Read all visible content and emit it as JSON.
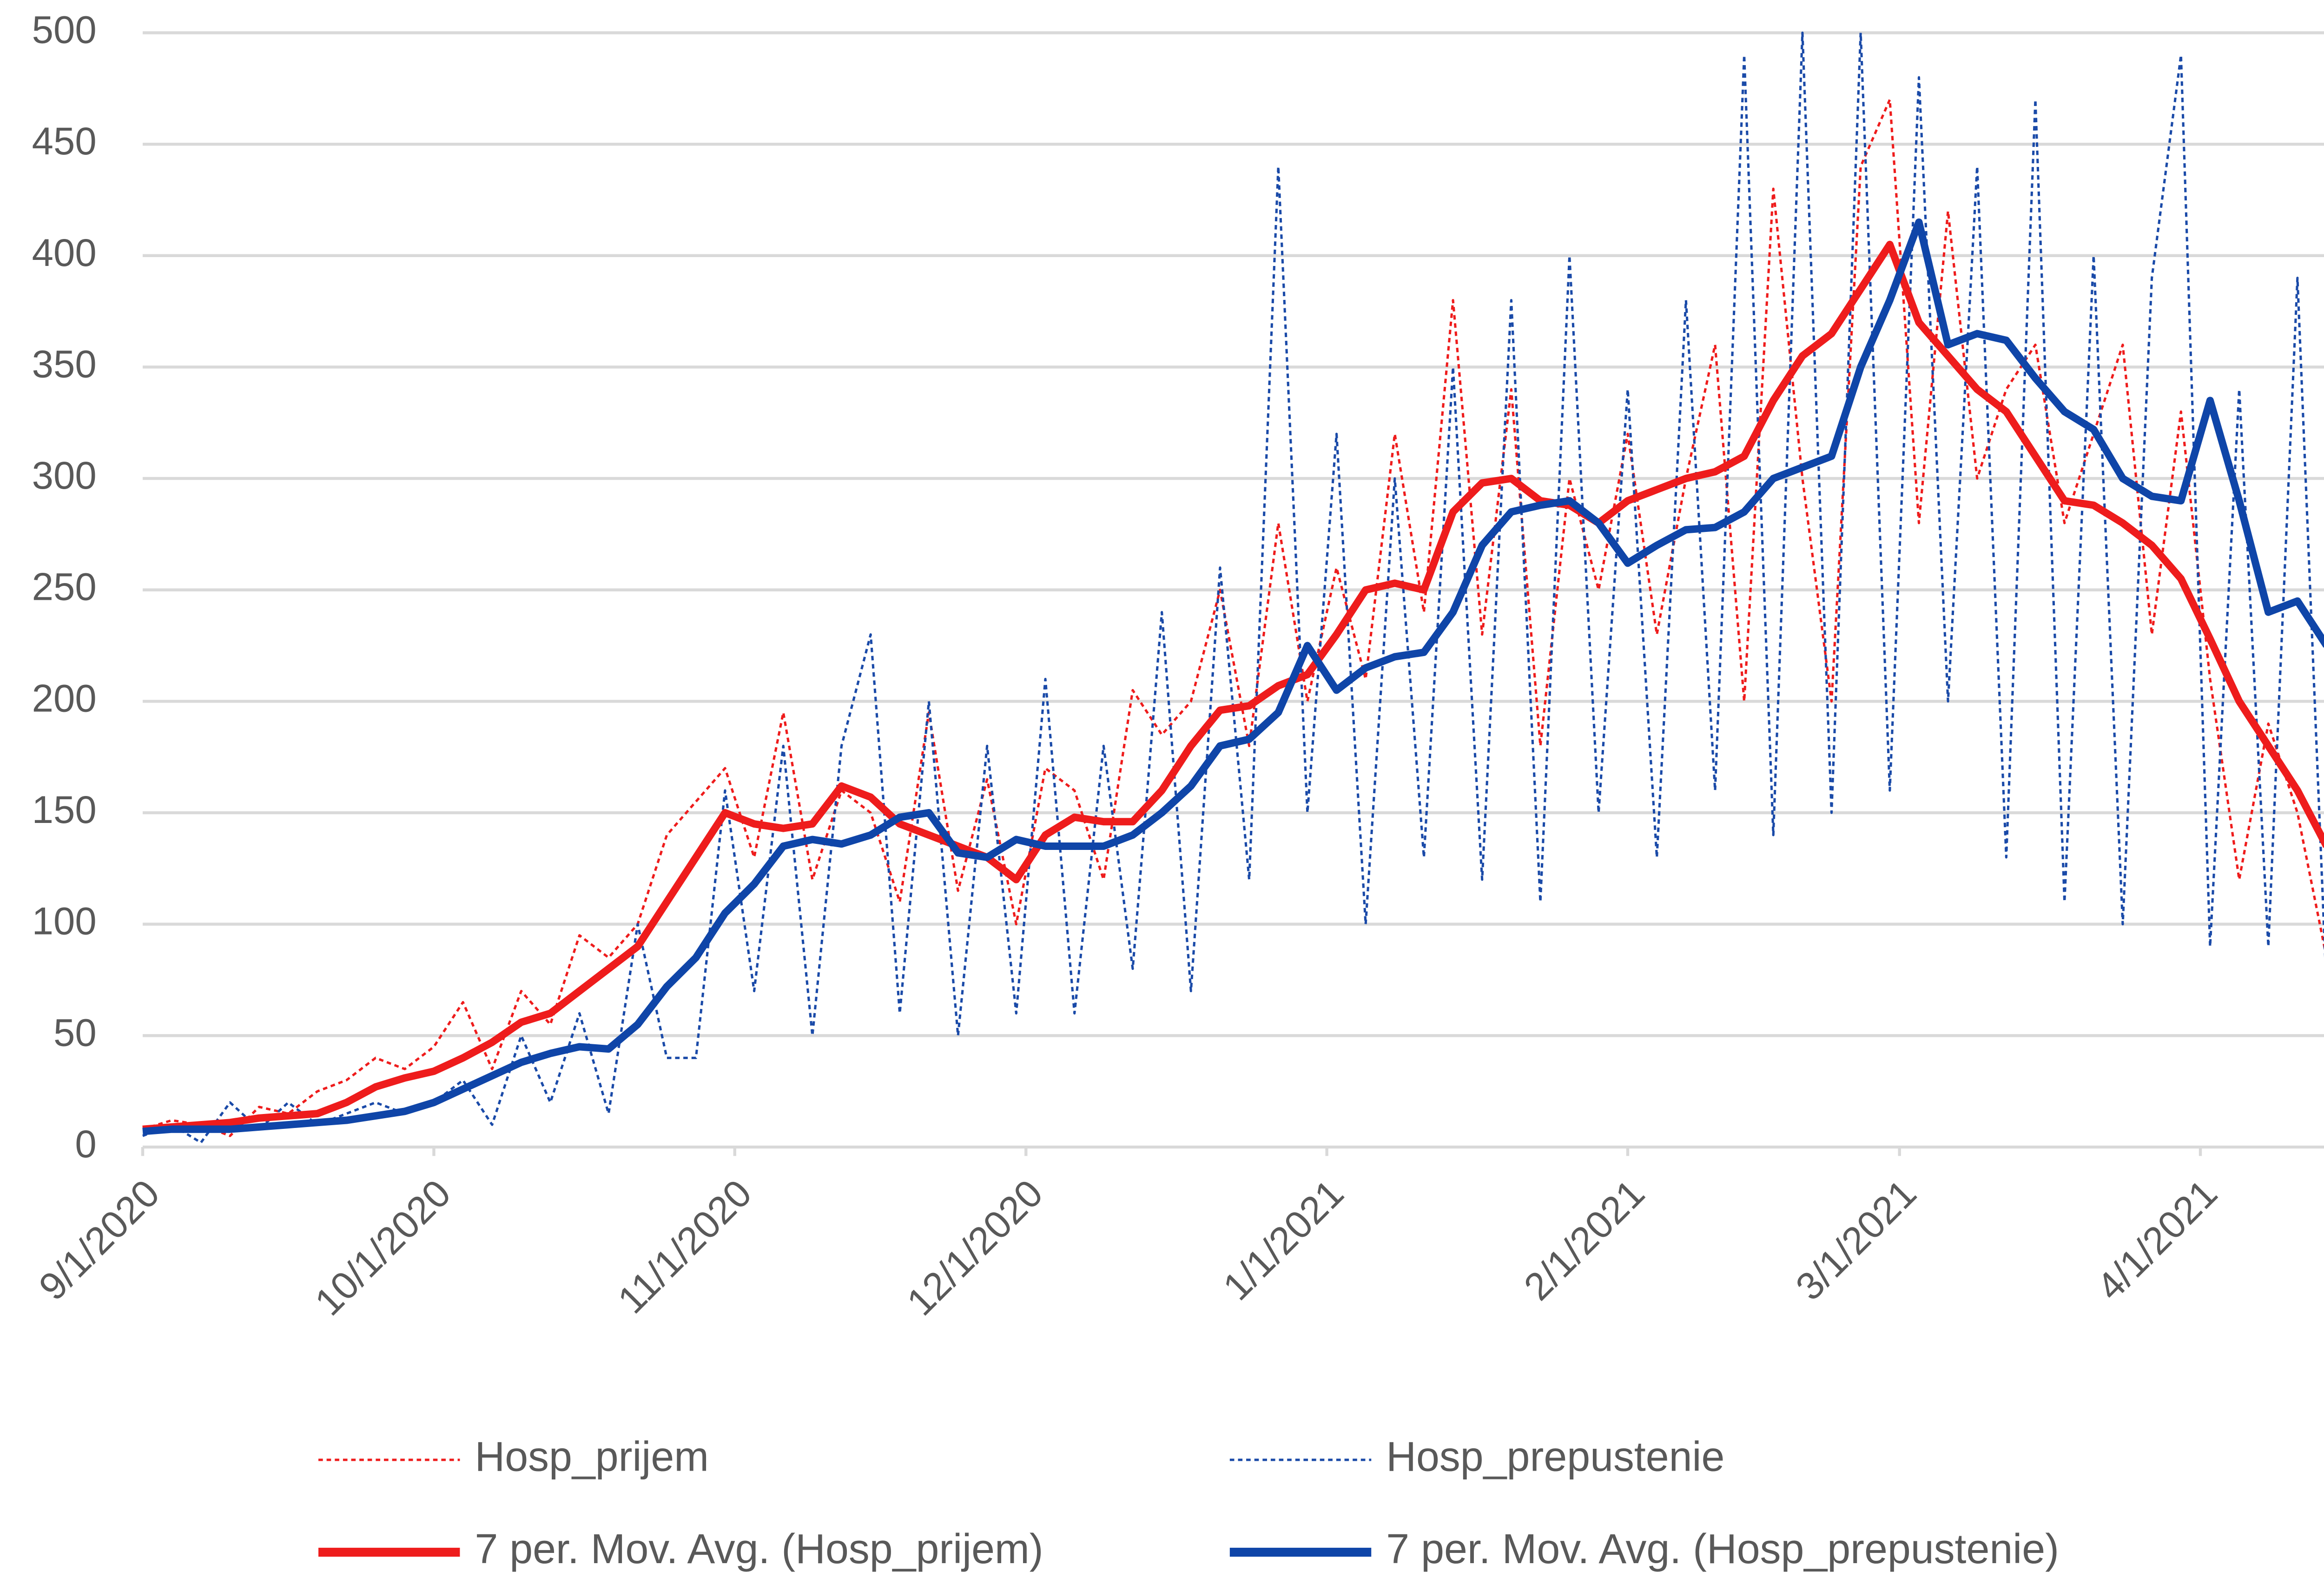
{
  "chart_data": {
    "type": "line",
    "x": [
      "9/1/2020",
      "9/4/2020",
      "9/7/2020",
      "9/10/2020",
      "9/13/2020",
      "9/16/2020",
      "9/19/2020",
      "9/22/2020",
      "9/25/2020",
      "9/28/2020",
      "10/1/2020",
      "10/4/2020",
      "10/7/2020",
      "10/10/2020",
      "10/13/2020",
      "10/16/2020",
      "10/19/2020",
      "10/22/2020",
      "10/25/2020",
      "10/28/2020",
      "10/31/2020",
      "11/3/2020",
      "11/6/2020",
      "11/9/2020",
      "11/12/2020",
      "11/15/2020",
      "11/18/2020",
      "11/21/2020",
      "11/24/2020",
      "11/27/2020",
      "11/30/2020",
      "12/3/2020",
      "12/6/2020",
      "12/9/2020",
      "12/12/2020",
      "12/15/2020",
      "12/18/2020",
      "12/21/2020",
      "12/24/2020",
      "12/27/2020",
      "12/30/2020",
      "1/2/2021",
      "1/5/2021",
      "1/8/2021",
      "1/11/2021",
      "1/14/2021",
      "1/17/2021",
      "1/20/2021",
      "1/23/2021",
      "1/26/2021",
      "1/29/2021",
      "2/1/2021",
      "2/4/2021",
      "2/7/2021",
      "2/10/2021",
      "2/13/2021",
      "2/16/2021",
      "2/19/2021",
      "2/22/2021",
      "2/25/2021",
      "2/28/2021",
      "3/3/2021",
      "3/6/2021",
      "3/9/2021",
      "3/12/2021",
      "3/15/2021",
      "3/18/2021",
      "3/21/2021",
      "3/24/2021",
      "3/27/2021",
      "3/30/2021",
      "4/2/2021",
      "4/5/2021",
      "4/8/2021",
      "4/11/2021",
      "4/14/2021"
    ],
    "series": [
      {
        "name": "Hosp_prijem",
        "color": "#ee1c1c",
        "line_style": "dashed",
        "values": [
          8,
          12,
          10,
          5,
          18,
          15,
          25,
          30,
          40,
          35,
          45,
          65,
          35,
          70,
          55,
          95,
          85,
          100,
          140,
          155,
          170,
          130,
          195,
          120,
          160,
          150,
          110,
          195,
          115,
          165,
          100,
          170,
          160,
          120,
          205,
          185,
          200,
          250,
          180,
          280,
          200,
          260,
          210,
          320,
          240,
          380,
          230,
          340,
          180,
          300,
          250,
          320,
          230,
          300,
          360,
          200,
          430,
          300,
          200,
          440,
          470,
          280,
          420,
          300,
          340,
          360,
          280,
          320,
          360,
          230,
          330,
          210,
          120,
          190,
          150,
          85
        ]
      },
      {
        "name": "Hosp_prepustenie",
        "color": "#1a4aa8",
        "line_style": "dashed",
        "values": [
          5,
          10,
          2,
          20,
          8,
          20,
          10,
          15,
          20,
          15,
          20,
          30,
          10,
          50,
          20,
          60,
          15,
          100,
          40,
          40,
          160,
          70,
          180,
          50,
          180,
          230,
          60,
          200,
          50,
          180,
          60,
          210,
          60,
          180,
          80,
          240,
          70,
          260,
          120,
          440,
          150,
          320,
          100,
          300,
          130,
          350,
          120,
          380,
          110,
          400,
          150,
          340,
          130,
          380,
          160,
          490,
          140,
          500,
          150,
          500,
          160,
          480,
          200,
          440,
          130,
          470,
          110,
          400,
          100,
          390,
          490,
          90,
          340,
          90,
          390,
          70
        ]
      },
      {
        "name": "7 per. Mov. Avg. (Hosp_prijem)",
        "color": "#ee1c1c",
        "line_style": "solid",
        "values": [
          8,
          9,
          10,
          11,
          13,
          14,
          15,
          20,
          27,
          31,
          34,
          40,
          47,
          56,
          60,
          70,
          80,
          90,
          110,
          130,
          150,
          145,
          143,
          145,
          162,
          157,
          145,
          140,
          135,
          130,
          120,
          140,
          148,
          146,
          146,
          160,
          180,
          196,
          198,
          207,
          212,
          230,
          250,
          253,
          250,
          285,
          298,
          300,
          290,
          288,
          280,
          290,
          295,
          300,
          303,
          310,
          335,
          355,
          365,
          385,
          405,
          370,
          355,
          340,
          330,
          310,
          290,
          288,
          280,
          270,
          255,
          228,
          200,
          180,
          160,
          135
        ]
      },
      {
        "name": "7 per. Mov. Avg. (Hosp_prepustenie)",
        "color": "#0f45a8",
        "line_style": "solid",
        "values": [
          7,
          8,
          8,
          8,
          9,
          10,
          11,
          12,
          14,
          16,
          20,
          26,
          32,
          38,
          42,
          45,
          44,
          55,
          72,
          85,
          105,
          118,
          135,
          138,
          136,
          140,
          148,
          150,
          132,
          130,
          138,
          135,
          135,
          135,
          140,
          150,
          162,
          180,
          183,
          195,
          225,
          205,
          215,
          220,
          222,
          240,
          270,
          285,
          288,
          290,
          280,
          262,
          270,
          277,
          278,
          285,
          300,
          305,
          310,
          350,
          380,
          415,
          360,
          365,
          362,
          345,
          330,
          322,
          300,
          292,
          290,
          335,
          290,
          240,
          245,
          225
        ]
      }
    ],
    "xlim": [
      "9/1/2020",
      "4/15/2021"
    ],
    "xticks": [
      "9/1/2020",
      "10/1/2020",
      "11/1/2020",
      "12/1/2020",
      "1/1/2021",
      "2/1/2021",
      "3/1/2021",
      "4/1/2021"
    ],
    "ylim": [
      0,
      500
    ],
    "yticks": [
      0,
      50,
      100,
      150,
      200,
      250,
      300,
      350,
      400,
      450,
      500
    ],
    "grid": true,
    "legend": "bottom"
  }
}
